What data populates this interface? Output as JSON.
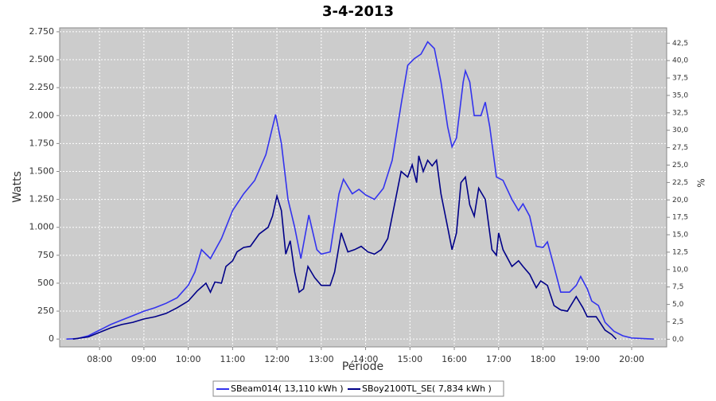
{
  "chart_data": {
    "type": "line",
    "title": "3-4-2013",
    "x_label": "Période",
    "y_label": "Watts",
    "y2_label": "%",
    "xlim": [
      7.1,
      20.79
    ],
    "xticks": [
      {
        "value": 8,
        "label": "08:00"
      },
      {
        "value": 9,
        "label": "09:00"
      },
      {
        "value": 10,
        "label": "10:00"
      },
      {
        "value": 11,
        "label": "11:00"
      },
      {
        "value": 12,
        "label": "12:00"
      },
      {
        "value": 13,
        "label": "13:00"
      },
      {
        "value": 14,
        "label": "14:00"
      },
      {
        "value": 15,
        "label": "15:00"
      },
      {
        "value": 16,
        "label": "16:00"
      },
      {
        "value": 17,
        "label": "17:00"
      },
      {
        "value": 18,
        "label": "18:00"
      },
      {
        "value": 19,
        "label": "19:00"
      },
      {
        "value": 20,
        "label": "20:00"
      }
    ],
    "ylim": [
      -70,
      2785
    ],
    "yticks": [
      0,
      250,
      500,
      750,
      {
        "value": 1000,
        "label": "1.000"
      },
      {
        "value": 1250,
        "label": "1.250"
      },
      {
        "value": 1500,
        "label": "1.500"
      },
      {
        "value": 1750,
        "label": "1.750"
      },
      {
        "value": 2000,
        "label": "2.000"
      },
      {
        "value": 2250,
        "label": "2.250"
      },
      {
        "value": 2500,
        "label": "2.500"
      },
      {
        "value": 2750,
        "label": "2.750"
      }
    ],
    "y2lim": [
      -1.1,
      44.7
    ],
    "y2ticks": [
      {
        "value": 0,
        "label": "0,0"
      },
      {
        "value": 2.5,
        "label": "2,5"
      },
      {
        "value": 5,
        "label": "5,0"
      },
      {
        "value": 7.5,
        "label": "7,5"
      },
      {
        "value": 10,
        "label": "10,0"
      },
      {
        "value": 12.5,
        "label": "12,5"
      },
      {
        "value": 15,
        "label": "15,0"
      },
      {
        "value": 17.5,
        "label": "17,5"
      },
      {
        "value": 20,
        "label": "20,0"
      },
      {
        "value": 22.5,
        "label": "22,5"
      },
      {
        "value": 25,
        "label": "25,0"
      },
      {
        "value": 27.5,
        "label": "27,5"
      },
      {
        "value": 30,
        "label": "30,0"
      },
      {
        "value": 32.5,
        "label": "32,5"
      },
      {
        "value": 35,
        "label": "35,0"
      },
      {
        "value": 37.5,
        "label": "37,5"
      },
      {
        "value": 40,
        "label": "40,0"
      },
      {
        "value": 42.5,
        "label": "42,5"
      }
    ],
    "grid": true,
    "legend": "bottom",
    "series": [
      {
        "name": "SBeam014( 13,110 kWh )",
        "color": "#3333ee",
        "x": [
          7.25,
          7.5,
          7.75,
          8.0,
          8.25,
          8.5,
          8.75,
          9.0,
          9.25,
          9.5,
          9.75,
          10.0,
          10.15,
          10.3,
          10.5,
          10.75,
          11.0,
          11.25,
          11.5,
          11.75,
          11.97,
          12.1,
          12.25,
          12.4,
          12.54,
          12.72,
          12.9,
          13.0,
          13.2,
          13.4,
          13.5,
          13.7,
          13.85,
          14.0,
          14.2,
          14.4,
          14.6,
          14.8,
          14.95,
          15.1,
          15.25,
          15.4,
          15.55,
          15.7,
          15.85,
          15.95,
          16.05,
          16.2,
          16.25,
          16.35,
          16.45,
          16.6,
          16.7,
          16.8,
          16.95,
          17.1,
          17.3,
          17.45,
          17.55,
          17.7,
          17.85,
          18.0,
          18.1,
          18.25,
          18.4,
          18.6,
          18.75,
          18.85,
          19.0,
          19.1,
          19.25,
          19.4,
          19.6,
          19.8,
          20.0,
          20.5
        ],
        "values": [
          0,
          5,
          30,
          80,
          130,
          170,
          210,
          250,
          280,
          320,
          370,
          480,
          600,
          800,
          720,
          900,
          1150,
          1300,
          1420,
          1650,
          2010,
          1750,
          1250,
          1000,
          720,
          1110,
          800,
          760,
          780,
          1300,
          1430,
          1300,
          1340,
          1290,
          1250,
          1350,
          1600,
          2100,
          2450,
          2510,
          2550,
          2660,
          2600,
          2300,
          1900,
          1720,
          1800,
          2300,
          2400,
          2300,
          2000,
          2000,
          2120,
          1900,
          1450,
          1420,
          1250,
          1150,
          1210,
          1100,
          830,
          820,
          870,
          650,
          420,
          420,
          480,
          560,
          450,
          340,
          300,
          150,
          70,
          30,
          10,
          0
        ]
      },
      {
        "name": "SBoy2100TL_SE( 7,834 kWh )",
        "color": "#000088",
        "x": [
          7.4,
          7.75,
          8.0,
          8.25,
          8.5,
          8.75,
          9.0,
          9.25,
          9.5,
          9.75,
          10.0,
          10.2,
          10.4,
          10.5,
          10.6,
          10.75,
          10.85,
          11.0,
          11.1,
          11.25,
          11.4,
          11.6,
          11.8,
          11.9,
          12.0,
          12.1,
          12.2,
          12.3,
          12.4,
          12.5,
          12.6,
          12.7,
          12.85,
          13.0,
          13.2,
          13.3,
          13.45,
          13.6,
          13.75,
          13.9,
          14.05,
          14.2,
          14.35,
          14.5,
          14.65,
          14.8,
          14.95,
          15.05,
          15.15,
          15.2,
          15.3,
          15.4,
          15.5,
          15.6,
          15.7,
          15.85,
          15.95,
          16.05,
          16.15,
          16.25,
          16.35,
          16.45,
          16.55,
          16.7,
          16.85,
          16.95,
          17.0,
          17.1,
          17.3,
          17.45,
          17.55,
          17.7,
          17.85,
          17.95,
          18.1,
          18.25,
          18.4,
          18.55,
          18.75,
          18.9,
          19.0,
          19.2,
          19.4,
          19.55,
          19.65
        ],
        "values": [
          0,
          20,
          60,
          100,
          130,
          150,
          180,
          200,
          230,
          280,
          340,
          430,
          500,
          420,
          510,
          500,
          650,
          700,
          780,
          820,
          830,
          940,
          1000,
          1100,
          1280,
          1150,
          760,
          880,
          600,
          420,
          450,
          650,
          550,
          480,
          480,
          600,
          950,
          780,
          800,
          830,
          780,
          760,
          800,
          900,
          1200,
          1500,
          1450,
          1560,
          1400,
          1640,
          1500,
          1600,
          1550,
          1600,
          1300,
          1000,
          800,
          950,
          1400,
          1450,
          1200,
          1100,
          1350,
          1250,
          800,
          750,
          950,
          800,
          650,
          700,
          650,
          580,
          460,
          520,
          480,
          300,
          260,
          250,
          380,
          280,
          200,
          200,
          80,
          40,
          0
        ]
      }
    ]
  }
}
